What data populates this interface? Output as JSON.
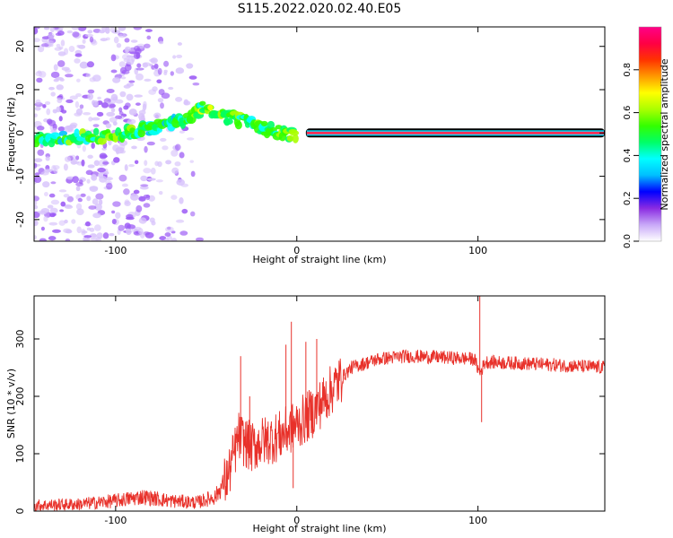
{
  "figure": {
    "title": "S115.2022.020.02.40.E05"
  },
  "chart_data": [
    {
      "type": "heatmap",
      "xlabel": "Height of straight line (km)",
      "ylabel": "Frequency (Hz)",
      "xlim": [
        -145,
        170
      ],
      "ylim": [
        -25,
        24.5
      ],
      "xticks": [
        -100,
        0,
        100
      ],
      "yticks": [
        -20,
        -10,
        0,
        10,
        20
      ],
      "colorbar": {
        "label": "Normalized spectral amplitude",
        "range": [
          0,
          1
        ],
        "ticks": [
          "0.0",
          "0.2",
          "0.4",
          "0.6",
          "0.8"
        ],
        "colors": [
          "#ffffff",
          "#c8a8f8",
          "#8a2be2",
          "#0000ff",
          "#00bfff",
          "#00ffff",
          "#00ff66",
          "#33ff00",
          "#aaff00",
          "#ffff00",
          "#ff9900",
          "#ff3300",
          "#ff0044",
          "#ff0088"
        ]
      },
      "ridge": {
        "description": "carrier line",
        "x_start": 5,
        "x_end": 170,
        "frequency": 0,
        "amplitude": 0.95,
        "points": [
          {
            "x": -145,
            "y": -1.5,
            "a": 0.45
          },
          {
            "x": -130,
            "y": -1.2,
            "a": 0.45
          },
          {
            "x": -115,
            "y": -1.0,
            "a": 0.5
          },
          {
            "x": -100,
            "y": -0.5,
            "a": 0.55
          },
          {
            "x": -90,
            "y": 0.3,
            "a": 0.5
          },
          {
            "x": -80,
            "y": 1.2,
            "a": 0.45
          },
          {
            "x": -70,
            "y": 2.2,
            "a": 0.45
          },
          {
            "x": -60,
            "y": 3.5,
            "a": 0.45
          },
          {
            "x": -52,
            "y": 6.0,
            "a": 0.55
          },
          {
            "x": -40,
            "y": 4.0,
            "a": 0.5
          },
          {
            "x": -30,
            "y": 2.8,
            "a": 0.5
          },
          {
            "x": -20,
            "y": 1.0,
            "a": 0.5
          },
          {
            "x": -10,
            "y": 0.5,
            "a": 0.55
          },
          {
            "x": 0,
            "y": -0.8,
            "a": 0.55
          }
        ]
      },
      "noise_region": {
        "x_min": -145,
        "x_max": -50,
        "amplitude": 0.25
      }
    },
    {
      "type": "line",
      "xlabel": "Height of straight line (km)",
      "ylabel": "SNR (10 * v/v)",
      "xlim": [
        -145,
        170
      ],
      "ylim": [
        0,
        375
      ],
      "xticks": [
        -100,
        0,
        100
      ],
      "yticks": [
        0,
        100,
        200,
        300
      ],
      "color": "#e8312a",
      "trend": [
        {
          "x": -145,
          "y": 10
        },
        {
          "x": -120,
          "y": 12
        },
        {
          "x": -100,
          "y": 18
        },
        {
          "x": -85,
          "y": 25
        },
        {
          "x": -70,
          "y": 18
        },
        {
          "x": -55,
          "y": 15
        },
        {
          "x": -45,
          "y": 25
        },
        {
          "x": -38,
          "y": 60
        },
        {
          "x": -32,
          "y": 130
        },
        {
          "x": -25,
          "y": 110
        },
        {
          "x": -20,
          "y": 120
        },
        {
          "x": -10,
          "y": 130
        },
        {
          "x": 0,
          "y": 150
        },
        {
          "x": 10,
          "y": 175
        },
        {
          "x": 20,
          "y": 215
        },
        {
          "x": 30,
          "y": 250
        },
        {
          "x": 45,
          "y": 265
        },
        {
          "x": 60,
          "y": 270
        },
        {
          "x": 80,
          "y": 268
        },
        {
          "x": 98,
          "y": 265
        },
        {
          "x": 101,
          "y": 240
        },
        {
          "x": 104,
          "y": 260
        },
        {
          "x": 120,
          "y": 258
        },
        {
          "x": 140,
          "y": 255
        },
        {
          "x": 170,
          "y": 250
        }
      ],
      "spikes": [
        {
          "x": -31,
          "y": 270
        },
        {
          "x": -26,
          "y": 200
        },
        {
          "x": -6,
          "y": 290
        },
        {
          "x": -3,
          "y": 330
        },
        {
          "x": -2,
          "y": 40
        },
        {
          "x": 5,
          "y": 295
        },
        {
          "x": 11,
          "y": 300
        },
        {
          "x": 101,
          "y": 375
        },
        {
          "x": 102,
          "y": 155
        }
      ]
    }
  ]
}
